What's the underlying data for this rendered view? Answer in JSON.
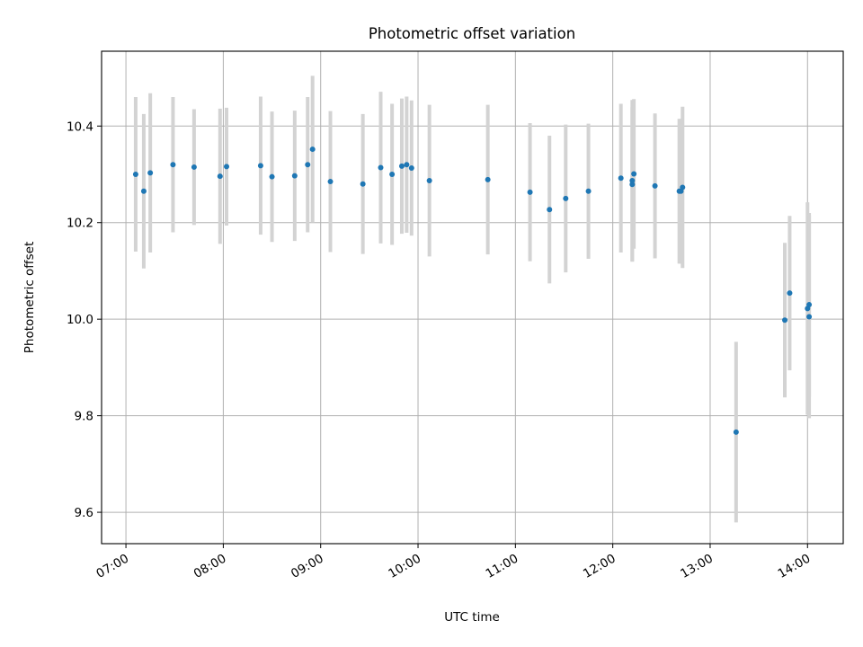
{
  "chart_data": {
    "type": "scatter",
    "title": "Photometric offset variation",
    "xlabel": "UTC time",
    "ylabel": "Photometric offset",
    "x_unit": "hours UTC",
    "xlim": [
      "06:45",
      "14:22"
    ],
    "ylim": [
      9.535,
      10.555
    ],
    "x_ticks": [
      "07:00",
      "08:00",
      "09:00",
      "10:00",
      "11:00",
      "12:00",
      "13:00",
      "14:00"
    ],
    "y_ticks": [
      "9.6",
      "9.8",
      "10.0",
      "10.2",
      "10.4"
    ],
    "grid": true,
    "legend": "none",
    "colors": {
      "point": "#1f77b4",
      "errorbar": "#d3d3d3",
      "grid": "#b0b0b0"
    },
    "points": [
      {
        "time": "07:06",
        "y": 10.3,
        "err": 0.16
      },
      {
        "time": "07:11",
        "y": 10.265,
        "err": 0.16
      },
      {
        "time": "07:15",
        "y": 10.303,
        "err": 0.165
      },
      {
        "time": "07:29",
        "y": 10.32,
        "err": 0.14
      },
      {
        "time": "07:42",
        "y": 10.315,
        "err": 0.12
      },
      {
        "time": "07:58",
        "y": 10.296,
        "err": 0.14
      },
      {
        "time": "08:02",
        "y": 10.316,
        "err": 0.122
      },
      {
        "time": "08:23",
        "y": 10.318,
        "err": 0.143
      },
      {
        "time": "08:30",
        "y": 10.295,
        "err": 0.135
      },
      {
        "time": "08:44",
        "y": 10.297,
        "err": 0.135
      },
      {
        "time": "08:52",
        "y": 10.32,
        "err": 0.14
      },
      {
        "time": "08:55",
        "y": 10.352,
        "err": 0.152
      },
      {
        "time": "09:06",
        "y": 10.285,
        "err": 0.146
      },
      {
        "time": "09:26",
        "y": 10.28,
        "err": 0.145
      },
      {
        "time": "09:37",
        "y": 10.314,
        "err": 0.157
      },
      {
        "time": "09:44",
        "y": 10.3,
        "err": 0.146
      },
      {
        "time": "09:50",
        "y": 10.317,
        "err": 0.14
      },
      {
        "time": "09:53",
        "y": 10.32,
        "err": 0.141
      },
      {
        "time": "09:56",
        "y": 10.313,
        "err": 0.14
      },
      {
        "time": "10:07",
        "y": 10.287,
        "err": 0.157
      },
      {
        "time": "10:43",
        "y": 10.289,
        "err": 0.155
      },
      {
        "time": "11:09",
        "y": 10.263,
        "err": 0.143
      },
      {
        "time": "11:21",
        "y": 10.227,
        "err": 0.153
      },
      {
        "time": "11:31",
        "y": 10.25,
        "err": 0.153
      },
      {
        "time": "11:45",
        "y": 10.265,
        "err": 0.14
      },
      {
        "time": "12:05",
        "y": 10.292,
        "err": 0.154
      },
      {
        "time": "12:12",
        "y": 10.287,
        "err": 0.167
      },
      {
        "time": "12:12",
        "y": 10.279,
        "err": 0.16
      },
      {
        "time": "12:13",
        "y": 10.301,
        "err": 0.155
      },
      {
        "time": "12:26",
        "y": 10.276,
        "err": 0.15
      },
      {
        "time": "12:41",
        "y": 10.265,
        "err": 0.15
      },
      {
        "time": "12:42",
        "y": 10.265,
        "err": 0.15
      },
      {
        "time": "12:43",
        "y": 10.273,
        "err": 0.167
      },
      {
        "time": "13:16",
        "y": 9.766,
        "err": 0.187
      },
      {
        "time": "13:46",
        "y": 9.998,
        "err": 0.16
      },
      {
        "time": "13:49",
        "y": 10.054,
        "err": 0.16
      },
      {
        "time": "14:00",
        "y": 10.022,
        "err": 0.22
      },
      {
        "time": "14:01",
        "y": 10.03,
        "err": 0.19
      },
      {
        "time": "14:01",
        "y": 10.005,
        "err": 0.21
      }
    ]
  }
}
